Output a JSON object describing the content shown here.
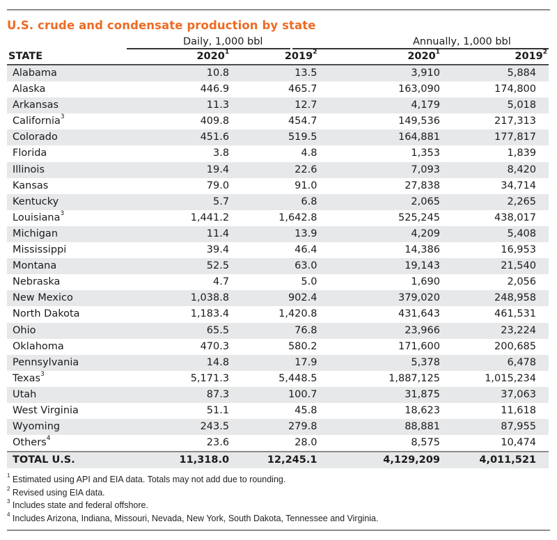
{
  "title": "U.S. crude and condensate production by state",
  "column_groups": [
    {
      "label": "Daily, 1,000 bbl"
    },
    {
      "label": "Annually, 1,000 bbl"
    }
  ],
  "columns": [
    {
      "label": "STATE",
      "note": ""
    },
    {
      "label": "2020",
      "note": "1"
    },
    {
      "label": "2019",
      "note": "2"
    },
    {
      "label": "2020",
      "note": "1"
    },
    {
      "label": "2019",
      "note": "2"
    }
  ],
  "rows": [
    {
      "state": "Alabama",
      "note": "",
      "daily_2020": "10.8",
      "daily_2019": "13.5",
      "annual_2020": "3,910",
      "annual_2019": "5,884"
    },
    {
      "state": "Alaska",
      "note": "",
      "daily_2020": "446.9",
      "daily_2019": "465.7",
      "annual_2020": "163,090",
      "annual_2019": "174,800"
    },
    {
      "state": "Arkansas",
      "note": "",
      "daily_2020": "11.3",
      "daily_2019": "12.7",
      "annual_2020": "4,179",
      "annual_2019": "5,018"
    },
    {
      "state": "California",
      "note": "3",
      "daily_2020": "409.8",
      "daily_2019": "454.7",
      "annual_2020": "149,536",
      "annual_2019": "217,313"
    },
    {
      "state": "Colorado",
      "note": "",
      "daily_2020": "451.6",
      "daily_2019": "519.5",
      "annual_2020": "164,881",
      "annual_2019": "177,817"
    },
    {
      "state": "Florida",
      "note": "",
      "daily_2020": "3.8",
      "daily_2019": "4.8",
      "annual_2020": "1,353",
      "annual_2019": "1,839"
    },
    {
      "state": "Illinois",
      "note": "",
      "daily_2020": "19.4",
      "daily_2019": "22.6",
      "annual_2020": "7,093",
      "annual_2019": "8,420"
    },
    {
      "state": "Kansas",
      "note": "",
      "daily_2020": "79.0",
      "daily_2019": "91.0",
      "annual_2020": "27,838",
      "annual_2019": "34,714"
    },
    {
      "state": "Kentucky",
      "note": "",
      "daily_2020": "5.7",
      "daily_2019": "6.8",
      "annual_2020": "2,065",
      "annual_2019": "2,265"
    },
    {
      "state": "Louisiana",
      "note": "3",
      "daily_2020": "1,441.2",
      "daily_2019": "1,642.8",
      "annual_2020": "525,245",
      "annual_2019": "438,017"
    },
    {
      "state": "Michigan",
      "note": "",
      "daily_2020": "11.4",
      "daily_2019": "13.9",
      "annual_2020": "4,209",
      "annual_2019": "5,408"
    },
    {
      "state": "Mississippi",
      "note": "",
      "daily_2020": "39.4",
      "daily_2019": "46.4",
      "annual_2020": "14,386",
      "annual_2019": "16,953"
    },
    {
      "state": "Montana",
      "note": "",
      "daily_2020": "52.5",
      "daily_2019": "63.0",
      "annual_2020": "19,143",
      "annual_2019": "21,540"
    },
    {
      "state": "Nebraska",
      "note": "",
      "daily_2020": "4.7",
      "daily_2019": "5.0",
      "annual_2020": "1,690",
      "annual_2019": "2,056"
    },
    {
      "state": "New Mexico",
      "note": "",
      "daily_2020": "1,038.8",
      "daily_2019": "902.4",
      "annual_2020": "379,020",
      "annual_2019": "248,958"
    },
    {
      "state": "North Dakota",
      "note": "",
      "daily_2020": "1,183.4",
      "daily_2019": "1,420.8",
      "annual_2020": "431,643",
      "annual_2019": "461,531"
    },
    {
      "state": "Ohio",
      "note": "",
      "daily_2020": "65.5",
      "daily_2019": "76.8",
      "annual_2020": "23,966",
      "annual_2019": "23,224"
    },
    {
      "state": "Oklahoma",
      "note": "",
      "daily_2020": "470.3",
      "daily_2019": "580.2",
      "annual_2020": "171,600",
      "annual_2019": "200,685"
    },
    {
      "state": "Pennsylvania",
      "note": "",
      "daily_2020": "14.8",
      "daily_2019": "17.9",
      "annual_2020": "5,378",
      "annual_2019": "6,478"
    },
    {
      "state": "Texas",
      "note": "3",
      "daily_2020": "5,171.3",
      "daily_2019": "5,448.5",
      "annual_2020": "1,887,125",
      "annual_2019": "1,015,234"
    },
    {
      "state": "Utah",
      "note": "",
      "daily_2020": "87.3",
      "daily_2019": "100.7",
      "annual_2020": "31,875",
      "annual_2019": "37,063"
    },
    {
      "state": "West Virginia",
      "note": "",
      "daily_2020": "51.1",
      "daily_2019": "45.8",
      "annual_2020": "18,623",
      "annual_2019": "11,618"
    },
    {
      "state": "Wyoming",
      "note": "",
      "daily_2020": "243.5",
      "daily_2019": "279.8",
      "annual_2020": "88,881",
      "annual_2019": "87,955"
    },
    {
      "state": "Others",
      "note": "4",
      "daily_2020": "23.6",
      "daily_2019": "28.0",
      "annual_2020": "8,575",
      "annual_2019": "10,474"
    }
  ],
  "total": {
    "state": "TOTAL U.S.",
    "daily_2020": "11,318.0",
    "daily_2019": "12,245.1",
    "annual_2020": "4,129,209",
    "annual_2019": "4,011,521"
  },
  "footnotes": [
    {
      "mark": "1",
      "text": " Estimated using API and EIA data. Totals may not add due to rounding."
    },
    {
      "mark": "2",
      "text": " Revised using EIA data."
    },
    {
      "mark": "3",
      "text": " Includes state and federal offshore."
    },
    {
      "mark": "4",
      "text": " Includes Arizona, Indiana, Missouri, Nevada, New York, South Dakota, Tennessee and Virginia."
    }
  ],
  "colors": {
    "title": "#ee6b24",
    "band": "#e7e8ea",
    "rule": "#8c8c8c"
  }
}
